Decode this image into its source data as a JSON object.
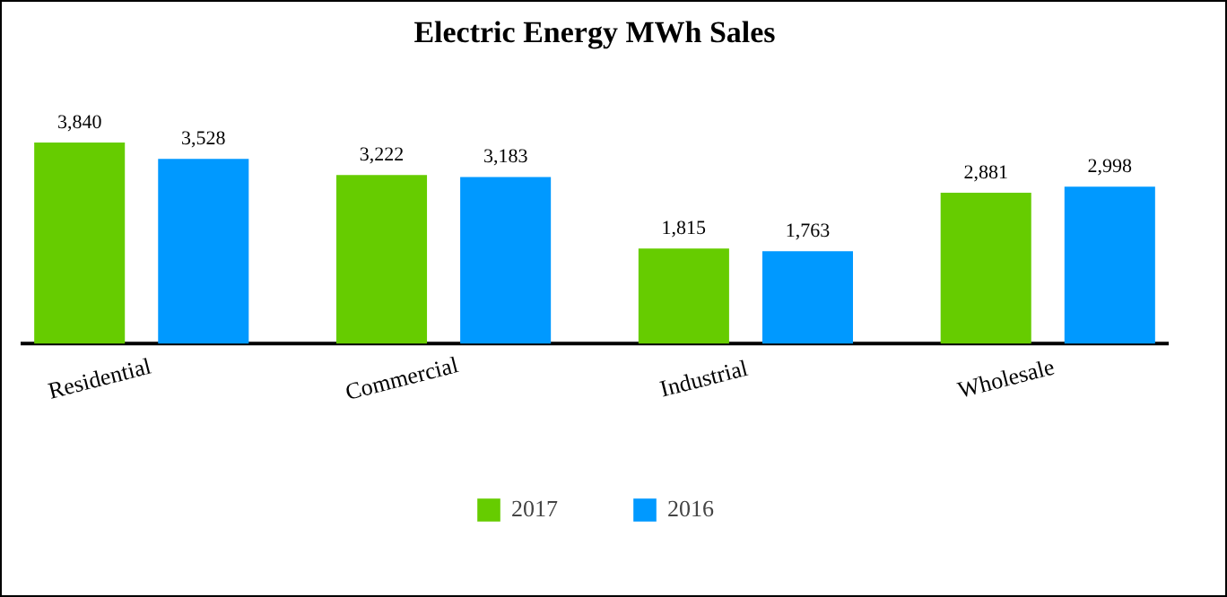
{
  "chart_data": {
    "type": "bar",
    "title": "Electric Energy MWh Sales",
    "categories": [
      "Residential",
      "Commercial",
      "Industrial",
      "Wholesale"
    ],
    "series": [
      {
        "name": "2017",
        "color": "#66cc00",
        "values": [
          3840,
          3222,
          1815,
          2881
        ],
        "value_labels": [
          "3,840",
          "3,222",
          "1,815",
          "2,881"
        ]
      },
      {
        "name": "2016",
        "color": "#0099ff",
        "values": [
          3528,
          3183,
          1763,
          2998
        ],
        "value_labels": [
          "3,528",
          "3,183",
          "1,763",
          "2,998"
        ]
      }
    ],
    "legend": "bottom"
  }
}
